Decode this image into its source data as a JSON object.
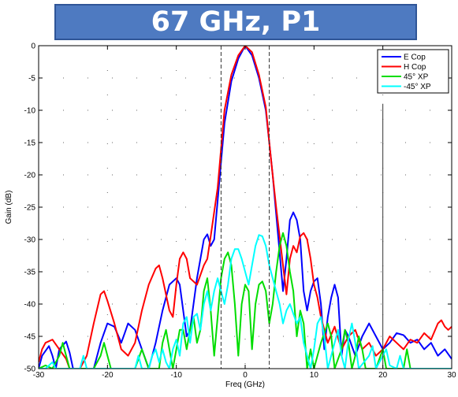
{
  "chart_data": {
    "type": "line",
    "title": "67 GHz, P1",
    "xlabel": "Freq (GHz)",
    "ylabel": "Gain (dB)",
    "xlim": [
      -30,
      30
    ],
    "ylim": [
      -50,
      0
    ],
    "xticks": [
      -30,
      -20,
      -10,
      0,
      10,
      20,
      30
    ],
    "yticks": [
      0,
      -5,
      -10,
      -15,
      -20,
      -25,
      -30,
      -35,
      -40,
      -45,
      -50
    ],
    "xtick_labels": [
      "-30",
      "-20",
      "-10",
      "0",
      "10",
      "20",
      "30"
    ],
    "ytick_labels": [
      "0",
      "-5",
      "-10",
      "-15",
      "-20",
      "-25",
      "-30",
      "-35",
      "-40",
      "-45",
      "-50"
    ],
    "grid": "dotted",
    "legend_position": "top-right",
    "vlines": [
      -3.5,
      3.5,
      20
    ],
    "series": [
      {
        "name": "E Cop",
        "color": "#0000ff",
        "points": [
          [
            -30,
            -50
          ],
          [
            -29.5,
            -48
          ],
          [
            -28.5,
            -46.5
          ],
          [
            -28,
            -48
          ],
          [
            -27.5,
            -50
          ],
          [
            -27,
            -47
          ],
          [
            -26,
            -45.8
          ],
          [
            -25.5,
            -47.5
          ],
          [
            -25,
            -50
          ],
          [
            -24,
            -50
          ],
          [
            -23,
            -50
          ],
          [
            -22,
            -50
          ],
          [
            -21,
            -46
          ],
          [
            -20,
            -43
          ],
          [
            -19,
            -43.5
          ],
          [
            -18,
            -46
          ],
          [
            -17.5,
            -44.5
          ],
          [
            -17,
            -43
          ],
          [
            -16,
            -44
          ],
          [
            -15,
            -47
          ],
          [
            -14,
            -50
          ],
          [
            -13,
            -46
          ],
          [
            -12,
            -41
          ],
          [
            -11,
            -37
          ],
          [
            -10,
            -36
          ],
          [
            -9.5,
            -37
          ],
          [
            -9,
            -41
          ],
          [
            -8.5,
            -45
          ],
          [
            -8,
            -44
          ],
          [
            -7.5,
            -40
          ],
          [
            -7,
            -36
          ],
          [
            -6,
            -30
          ],
          [
            -5.5,
            -29.2
          ],
          [
            -5,
            -31
          ],
          [
            -4.5,
            -30
          ],
          [
            -4,
            -24
          ],
          [
            -3.5,
            -18
          ],
          [
            -3,
            -12
          ],
          [
            -2,
            -5.5
          ],
          [
            -1,
            -2
          ],
          [
            0,
            0
          ],
          [
            1,
            -1.5
          ],
          [
            2,
            -5
          ],
          [
            3,
            -10
          ],
          [
            3.5,
            -15
          ],
          [
            4,
            -20
          ],
          [
            4.5,
            -26
          ],
          [
            5,
            -32
          ],
          [
            5.5,
            -38
          ],
          [
            6,
            -33
          ],
          [
            6.5,
            -27
          ],
          [
            7,
            -25.8
          ],
          [
            7.5,
            -27
          ],
          [
            8,
            -30
          ],
          [
            8.5,
            -38
          ],
          [
            9,
            -41
          ],
          [
            9.5,
            -38
          ],
          [
            10,
            -36.5
          ],
          [
            10.5,
            -36
          ],
          [
            11,
            -40
          ],
          [
            11.5,
            -47
          ],
          [
            12,
            -42
          ],
          [
            12.5,
            -39
          ],
          [
            13,
            -37
          ],
          [
            13.5,
            -39
          ],
          [
            14,
            -48
          ],
          [
            14.5,
            -44
          ],
          [
            15,
            -45
          ],
          [
            16,
            -48
          ],
          [
            17,
            -45
          ],
          [
            18,
            -43
          ],
          [
            19,
            -45
          ],
          [
            20,
            -47
          ],
          [
            21,
            -46
          ],
          [
            22,
            -44.5
          ],
          [
            23,
            -44.8
          ],
          [
            24,
            -46
          ],
          [
            25,
            -45.5
          ],
          [
            26,
            -47
          ],
          [
            27,
            -46
          ],
          [
            28,
            -48
          ],
          [
            29,
            -47
          ],
          [
            30,
            -48.5
          ]
        ]
      },
      {
        "name": "H Cop",
        "color": "#ff0000",
        "points": [
          [
            -30,
            -49
          ],
          [
            -29.5,
            -47
          ],
          [
            -29,
            -46
          ],
          [
            -28,
            -45.5
          ],
          [
            -27,
            -47
          ],
          [
            -26,
            -48.5
          ],
          [
            -25.5,
            -50
          ],
          [
            -24,
            -50
          ],
          [
            -23,
            -48
          ],
          [
            -22,
            -43
          ],
          [
            -21,
            -38.5
          ],
          [
            -20.5,
            -38
          ],
          [
            -20,
            -39.5
          ],
          [
            -19,
            -43
          ],
          [
            -18,
            -47
          ],
          [
            -17,
            -48
          ],
          [
            -16,
            -46
          ],
          [
            -15,
            -41
          ],
          [
            -14,
            -37
          ],
          [
            -13,
            -34.5
          ],
          [
            -12.5,
            -34
          ],
          [
            -12,
            -36
          ],
          [
            -11,
            -41
          ],
          [
            -10.5,
            -42
          ],
          [
            -10,
            -37
          ],
          [
            -9.5,
            -33
          ],
          [
            -9,
            -32
          ],
          [
            -8.5,
            -33
          ],
          [
            -8,
            -36
          ],
          [
            -7,
            -37
          ],
          [
            -6,
            -34
          ],
          [
            -5.5,
            -33
          ],
          [
            -5,
            -29.5
          ],
          [
            -4,
            -22
          ],
          [
            -3.5,
            -16
          ],
          [
            -3,
            -10
          ],
          [
            -2,
            -4.5
          ],
          [
            -1,
            -1.5
          ],
          [
            0,
            0
          ],
          [
            1,
            -1
          ],
          [
            2,
            -4.5
          ],
          [
            3,
            -9.5
          ],
          [
            3.5,
            -15
          ],
          [
            4,
            -20
          ],
          [
            4.5,
            -25
          ],
          [
            5,
            -29.5
          ],
          [
            5.5,
            -34
          ],
          [
            6,
            -38.5
          ],
          [
            6.5,
            -33
          ],
          [
            7,
            -31
          ],
          [
            7.5,
            -32
          ],
          [
            8,
            -29.5
          ],
          [
            8.5,
            -29
          ],
          [
            9,
            -30
          ],
          [
            9.5,
            -33
          ],
          [
            10,
            -37
          ],
          [
            10.5,
            -39
          ],
          [
            11,
            -42
          ],
          [
            12,
            -46
          ],
          [
            13,
            -43.5
          ],
          [
            14,
            -47
          ],
          [
            15,
            -45
          ],
          [
            16,
            -44
          ],
          [
            17,
            -47
          ],
          [
            18,
            -46
          ],
          [
            19,
            -48
          ],
          [
            20,
            -47
          ],
          [
            21,
            -45
          ],
          [
            22,
            -46
          ],
          [
            23,
            -47
          ],
          [
            24,
            -45.5
          ],
          [
            25,
            -46
          ],
          [
            26,
            -44.5
          ],
          [
            27,
            -45.5
          ],
          [
            28,
            -43
          ],
          [
            28.5,
            -42.5
          ],
          [
            29,
            -43.5
          ],
          [
            29.5,
            -44
          ],
          [
            30,
            -43.5
          ]
        ]
      },
      {
        "name": "45° XP",
        "color": "#00dd00",
        "points": [
          [
            -30,
            -50
          ],
          [
            -29,
            -49.5
          ],
          [
            -28,
            -50
          ],
          [
            -27,
            -48
          ],
          [
            -26.5,
            -46
          ],
          [
            -26,
            -48
          ],
          [
            -25.5,
            -50
          ],
          [
            -22,
            -50
          ],
          [
            -21,
            -48
          ],
          [
            -20.5,
            -46
          ],
          [
            -20,
            -48
          ],
          [
            -19.5,
            -50
          ],
          [
            -16,
            -50
          ],
          [
            -15,
            -47
          ],
          [
            -14,
            -50
          ],
          [
            -12.5,
            -50
          ],
          [
            -12,
            -46
          ],
          [
            -11.5,
            -44
          ],
          [
            -11,
            -47
          ],
          [
            -10.5,
            -50
          ],
          [
            -10,
            -47
          ],
          [
            -9.5,
            -44
          ],
          [
            -9,
            -44
          ],
          [
            -8.5,
            -47
          ],
          [
            -8,
            -44
          ],
          [
            -7.5,
            -42
          ],
          [
            -7,
            -46
          ],
          [
            -6.5,
            -44
          ],
          [
            -6,
            -38
          ],
          [
            -5.5,
            -36
          ],
          [
            -5,
            -41
          ],
          [
            -4.5,
            -48
          ],
          [
            -4,
            -42
          ],
          [
            -3.5,
            -36
          ],
          [
            -3,
            -33
          ],
          [
            -2.5,
            -32
          ],
          [
            -2,
            -34
          ],
          [
            -1.5,
            -40
          ],
          [
            -1,
            -48
          ],
          [
            -0.5,
            -40
          ],
          [
            0,
            -37
          ],
          [
            0.5,
            -38
          ],
          [
            1,
            -47
          ],
          [
            1.5,
            -40
          ],
          [
            2,
            -37
          ],
          [
            2.5,
            -36.5
          ],
          [
            3,
            -38
          ],
          [
            3.5,
            -43
          ],
          [
            4,
            -40
          ],
          [
            4.5,
            -35
          ],
          [
            5,
            -31
          ],
          [
            5.5,
            -29
          ],
          [
            6,
            -31
          ],
          [
            6.5,
            -35
          ],
          [
            7,
            -38
          ],
          [
            7.5,
            -45
          ],
          [
            8,
            -41
          ],
          [
            8.5,
            -43
          ],
          [
            9,
            -50
          ],
          [
            9.5,
            -47
          ],
          [
            10,
            -50
          ],
          [
            11,
            -46
          ],
          [
            12,
            -43
          ],
          [
            12.5,
            -45
          ],
          [
            13,
            -50
          ],
          [
            14,
            -47
          ],
          [
            14.5,
            -44
          ],
          [
            15,
            -46
          ],
          [
            15.5,
            -50
          ],
          [
            16,
            -48
          ],
          [
            16.5,
            -45
          ],
          [
            17,
            -47
          ],
          [
            17.5,
            -50
          ],
          [
            19,
            -50
          ],
          [
            20,
            -47
          ],
          [
            20.5,
            -50
          ],
          [
            23,
            -50
          ],
          [
            23.5,
            -47
          ],
          [
            24,
            -50
          ],
          [
            30,
            -50
          ]
        ]
      },
      {
        "name": "-45° XP",
        "color": "#00ffff",
        "points": [
          [
            -30,
            -50
          ],
          [
            -29,
            -50
          ],
          [
            -28,
            -49
          ],
          [
            -27.5,
            -50
          ],
          [
            -24,
            -50
          ],
          [
            -23.5,
            -48
          ],
          [
            -23,
            -50
          ],
          [
            -16,
            -50
          ],
          [
            -15.5,
            -48
          ],
          [
            -15,
            -50
          ],
          [
            -14,
            -50
          ],
          [
            -13.5,
            -48
          ],
          [
            -13,
            -47
          ],
          [
            -12.5,
            -49
          ],
          [
            -12,
            -47
          ],
          [
            -11.5,
            -49
          ],
          [
            -11,
            -50
          ],
          [
            -10.5,
            -47
          ],
          [
            -10,
            -45.5
          ],
          [
            -9.5,
            -48
          ],
          [
            -9,
            -43
          ],
          [
            -8.5,
            -42
          ],
          [
            -8,
            -46
          ],
          [
            -7.5,
            -42
          ],
          [
            -7,
            -41.5
          ],
          [
            -6.5,
            -44
          ],
          [
            -6,
            -40
          ],
          [
            -5.5,
            -38
          ],
          [
            -5,
            -41
          ],
          [
            -4.5,
            -38
          ],
          [
            -4,
            -36
          ],
          [
            -3.5,
            -38
          ],
          [
            -3,
            -40
          ],
          [
            -2.5,
            -37
          ],
          [
            -2,
            -33
          ],
          [
            -1.5,
            -31.5
          ],
          [
            -1,
            -31.5
          ],
          [
            -0.5,
            -33
          ],
          [
            0,
            -35
          ],
          [
            0.5,
            -37
          ],
          [
            1,
            -34
          ],
          [
            1.5,
            -31
          ],
          [
            2,
            -29.3
          ],
          [
            2.5,
            -29.5
          ],
          [
            3,
            -31
          ],
          [
            3.5,
            -34
          ],
          [
            4,
            -36
          ],
          [
            4.5,
            -38
          ],
          [
            5,
            -40
          ],
          [
            5.5,
            -43
          ],
          [
            6,
            -41
          ],
          [
            6.5,
            -40
          ],
          [
            7,
            -41.5
          ],
          [
            7.5,
            -43
          ],
          [
            8,
            -42
          ],
          [
            8.5,
            -46
          ],
          [
            9,
            -48
          ],
          [
            9.5,
            -50
          ],
          [
            10,
            -47
          ],
          [
            10.5,
            -43
          ],
          [
            11,
            -42
          ],
          [
            11.5,
            -45
          ],
          [
            12,
            -50
          ],
          [
            13,
            -46
          ],
          [
            13.5,
            -44
          ],
          [
            14,
            -48
          ],
          [
            14.5,
            -50
          ],
          [
            15,
            -45.5
          ],
          [
            15.5,
            -43
          ],
          [
            16,
            -46
          ],
          [
            16.5,
            -50
          ],
          [
            18,
            -48
          ],
          [
            18.5,
            -46.5
          ],
          [
            19,
            -50
          ],
          [
            20,
            -48
          ],
          [
            20.5,
            -47
          ],
          [
            21,
            -49.5
          ],
          [
            22,
            -50
          ],
          [
            22.5,
            -48
          ],
          [
            23,
            -50
          ],
          [
            30,
            -50
          ]
        ]
      }
    ]
  }
}
